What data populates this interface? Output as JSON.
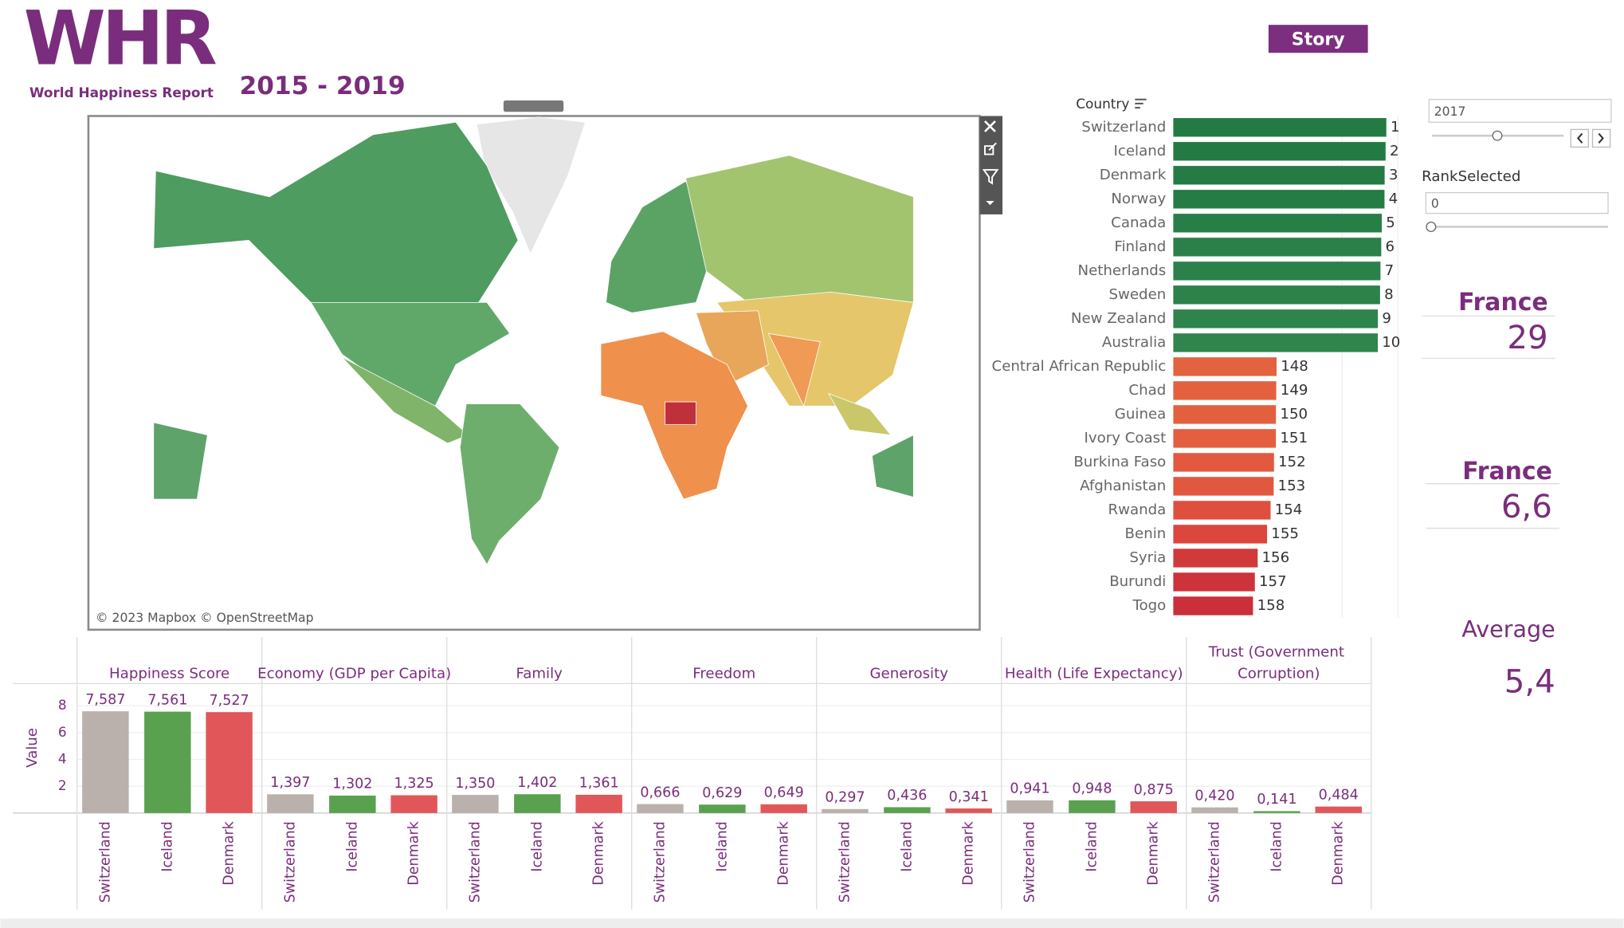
{
  "header": {
    "logo": "WHR",
    "subtitle": "World Happiness Report",
    "period": "2015 - 2019",
    "story_button": "Story"
  },
  "map": {
    "attribution": "© 2023 Mapbox © OpenStreetMap"
  },
  "filters": {
    "year": "2017",
    "rank_label": "RankSelected",
    "rank_value": "0"
  },
  "kpis": [
    {
      "label": "France",
      "value": "29"
    },
    {
      "label": "France",
      "value": "6,6"
    },
    {
      "label": "Average",
      "value": "5,4"
    }
  ],
  "chart_data": [
    {
      "type": "bar",
      "orientation": "horizontal",
      "axis_title": "Country",
      "categories": [
        "Switzerland",
        "Iceland",
        "Denmark",
        "Norway",
        "Canada",
        "Finland",
        "Netherlands",
        "Sweden",
        "New Zealand",
        "Australia",
        "Central African Republic",
        "Chad",
        "Guinea",
        "Ivory Coast",
        "Burkina Faso",
        "Afghanistan",
        "Rwanda",
        "Benin",
        "Syria",
        "Burundi",
        "Togo"
      ],
      "values": [
        7.587,
        7.561,
        7.527,
        7.522,
        7.427,
        7.406,
        7.378,
        7.364,
        7.286,
        7.284,
        3.678,
        3.667,
        3.656,
        3.655,
        3.587,
        3.575,
        3.465,
        3.34,
        3.006,
        2.905,
        2.839
      ],
      "ranks": [
        1,
        2,
        3,
        4,
        5,
        6,
        7,
        8,
        9,
        10,
        148,
        149,
        150,
        151,
        152,
        153,
        154,
        155,
        156,
        157,
        158
      ],
      "colors": [
        "#237a43",
        "#237a43",
        "#247b44",
        "#257c45",
        "#287e47",
        "#2a8048",
        "#2b8149",
        "#2d824a",
        "#2f844c",
        "#30854d",
        "#e3623f",
        "#e3613f",
        "#e3603f",
        "#e35f3f",
        "#e2593f",
        "#e2573f",
        "#df4f3e",
        "#db463d",
        "#d13a3b",
        "#cd333a",
        "#ca2f3a"
      ],
      "xlim": [
        0,
        8
      ]
    },
    {
      "type": "bar",
      "orientation": "vertical",
      "y_label": "Value",
      "categories": [
        "Switzerland",
        "Iceland",
        "Denmark"
      ],
      "colors": [
        "#bab0ac",
        "#59a14f",
        "#e15759"
      ],
      "ylim": [
        0,
        9.5
      ],
      "yticks": [
        2,
        4,
        6,
        8
      ],
      "grid": true,
      "facets": [
        {
          "name": "Happiness Score",
          "values": [
            7.587,
            7.561,
            7.527
          ],
          "value_labels": [
            "7,587",
            "7,561",
            "7,527"
          ]
        },
        {
          "name": "Economy (GDP per Capita)",
          "values": [
            1.397,
            1.302,
            1.325
          ],
          "value_labels": [
            "1,397",
            "1,302",
            "1,325"
          ]
        },
        {
          "name": "Family",
          "values": [
            1.35,
            1.402,
            1.361
          ],
          "value_labels": [
            "1,350",
            "1,402",
            "1,361"
          ]
        },
        {
          "name": "Freedom",
          "values": [
            0.666,
            0.629,
            0.649
          ],
          "value_labels": [
            "0,666",
            "0,629",
            "0,649"
          ]
        },
        {
          "name": "Generosity",
          "values": [
            0.297,
            0.436,
            0.341
          ],
          "value_labels": [
            "0,297",
            "0,436",
            "0,341"
          ]
        },
        {
          "name": "Health (Life Expectancy)",
          "values": [
            0.941,
            0.948,
            0.875
          ],
          "value_labels": [
            "0,941",
            "0,948",
            "0,875"
          ]
        },
        {
          "name": "Trust (Government Corruption)",
          "values": [
            0.42,
            0.141,
            0.484
          ],
          "value_labels": [
            "0,420",
            "0,141",
            "0,484"
          ]
        }
      ]
    }
  ]
}
